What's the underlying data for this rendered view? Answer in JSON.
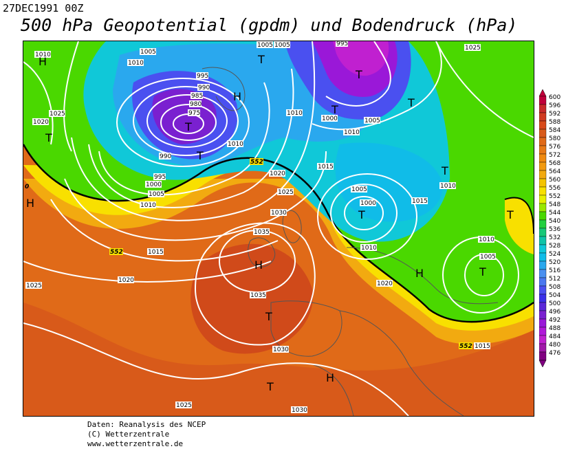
{
  "header": {
    "date": "27DEC1991 00Z",
    "title": "500 hPa Geopotential (gpdm) und Bodendruck (hPa)"
  },
  "legend": {
    "levels": [
      "600",
      "596",
      "592",
      "588",
      "584",
      "580",
      "576",
      "572",
      "568",
      "564",
      "560",
      "556",
      "552",
      "548",
      "544",
      "540",
      "536",
      "532",
      "528",
      "524",
      "520",
      "516",
      "512",
      "508",
      "504",
      "500",
      "496",
      "492",
      "488",
      "484",
      "480",
      "476"
    ],
    "colors": [
      "#c0003a",
      "#c82a2a",
      "#d03a20",
      "#d84a1a",
      "#d85a1a",
      "#e06a18",
      "#e87a16",
      "#f08a10",
      "#f29a10",
      "#f2aa10",
      "#f4c400",
      "#f8e000",
      "#e8f000",
      "#9ae800",
      "#4ad800",
      "#22d040",
      "#18c878",
      "#10c4a8",
      "#10c8d8",
      "#10bce8",
      "#2aa8ee",
      "#4a90f0",
      "#4a78f0",
      "#4a50f0",
      "#3a30e8",
      "#5a28d8",
      "#7a20d0",
      "#9a18d8",
      "#b018d8",
      "#c020d0",
      "#a018a8",
      "#800080"
    ]
  },
  "map": {
    "isobar_labels": [
      {
        "t": "1010"
      },
      {
        "t": "1005"
      },
      {
        "t": "1010"
      },
      {
        "t": "1005"
      },
      {
        "t": "1005"
      },
      {
        "t": "995"
      },
      {
        "t": "995"
      },
      {
        "t": "990"
      },
      {
        "t": "985"
      },
      {
        "t": "980"
      },
      {
        "t": "975"
      },
      {
        "t": "1025"
      },
      {
        "t": "1020"
      },
      {
        "t": "990"
      },
      {
        "t": "995"
      },
      {
        "t": "1000"
      },
      {
        "t": "1005"
      },
      {
        "t": "1010"
      },
      {
        "t": "1010"
      },
      {
        "t": "1000"
      },
      {
        "t": "1005"
      },
      {
        "t": "1010"
      },
      {
        "t": "1010"
      },
      {
        "t": "1015"
      },
      {
        "t": "1020"
      },
      {
        "t": "1025"
      },
      {
        "t": "1030"
      },
      {
        "t": "1035"
      },
      {
        "t": "1035"
      },
      {
        "t": "1015"
      },
      {
        "t": "1020"
      },
      {
        "t": "1025"
      },
      {
        "t": "1005"
      },
      {
        "t": "1000"
      },
      {
        "t": "1010"
      },
      {
        "t": "1015"
      },
      {
        "t": "1010"
      },
      {
        "t": "1010"
      },
      {
        "t": "1005"
      },
      {
        "t": "1020"
      },
      {
        "t": "1015"
      },
      {
        "t": "1030"
      },
      {
        "t": "1025"
      },
      {
        "t": "1030"
      },
      {
        "t": "1025"
      }
    ],
    "pressure_centers": [
      {
        "t": "H"
      },
      {
        "t": "T"
      },
      {
        "t": "T"
      },
      {
        "t": "H"
      },
      {
        "t": "T"
      },
      {
        "t": "T"
      },
      {
        "t": "T"
      },
      {
        "t": "T"
      },
      {
        "t": "T"
      },
      {
        "t": "T"
      },
      {
        "t": "H"
      },
      {
        "t": "T"
      },
      {
        "t": "T"
      },
      {
        "t": "H"
      },
      {
        "t": "T"
      },
      {
        "t": "H"
      },
      {
        "t": "H"
      },
      {
        "t": "T"
      },
      {
        "t": "T"
      },
      {
        "t": "H"
      }
    ],
    "contour_552_labels": [
      "552",
      "552",
      "552"
    ],
    "edge_label": "0"
  },
  "footer": {
    "line1": "Daten: Reanalysis des NCEP",
    "line2": "(C) Wetterzentrale",
    "line3": "www.wetterzentrale.de"
  }
}
